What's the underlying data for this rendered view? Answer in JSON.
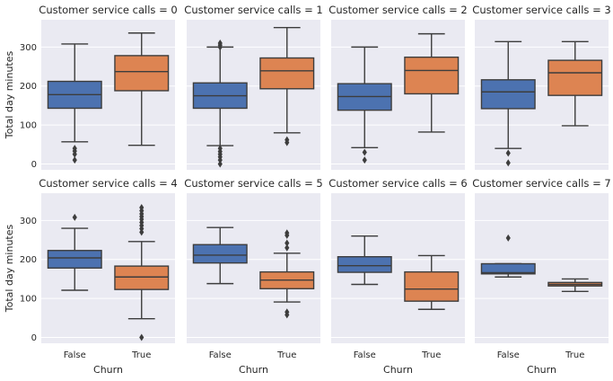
{
  "chart_data": {
    "type": "boxplot",
    "ylabel": "Total day minutes",
    "xlabel": "Churn",
    "categories": [
      "False",
      "True"
    ],
    "yticks": [
      0,
      100,
      200,
      300
    ],
    "ylim": [
      -15,
      370
    ],
    "grid": true,
    "colors": {
      "False": "#4c72b0",
      "True": "#dd8452",
      "background": "#eaeaf2",
      "grid": "#ffffff",
      "line": "#3d3d3d"
    },
    "panels": [
      {
        "title": "Customer service calls = 0",
        "boxes": [
          {
            "category": "False",
            "whislo": 57,
            "q1": 143,
            "med": 178,
            "q3": 212,
            "whishi": 308,
            "outliers": [
              40,
              33,
              25,
              10
            ]
          },
          {
            "category": "True",
            "whislo": 48,
            "q1": 188,
            "med": 237,
            "q3": 278,
            "whishi": 336,
            "outliers": []
          }
        ]
      },
      {
        "title": "Customer service calls = 1",
        "boxes": [
          {
            "category": "False",
            "whislo": 47,
            "q1": 143,
            "med": 175,
            "q3": 208,
            "whishi": 300,
            "outliers": [
              310,
              305,
              300,
              40,
              32,
              25,
              18,
              10,
              0
            ]
          },
          {
            "category": "True",
            "whislo": 80,
            "q1": 193,
            "med": 239,
            "q3": 272,
            "whishi": 350,
            "outliers": [
              62,
              55
            ]
          }
        ]
      },
      {
        "title": "Customer service calls = 2",
        "boxes": [
          {
            "category": "False",
            "whislo": 42,
            "q1": 138,
            "med": 173,
            "q3": 206,
            "whishi": 300,
            "outliers": [
              30,
              10
            ]
          },
          {
            "category": "True",
            "whislo": 82,
            "q1": 180,
            "med": 240,
            "q3": 274,
            "whishi": 334,
            "outliers": []
          }
        ]
      },
      {
        "title": "Customer service calls = 3",
        "boxes": [
          {
            "category": "False",
            "whislo": 40,
            "q1": 142,
            "med": 185,
            "q3": 216,
            "whishi": 314,
            "outliers": [
              28,
              3
            ]
          },
          {
            "category": "True",
            "whislo": 98,
            "q1": 176,
            "med": 234,
            "q3": 266,
            "whishi": 314,
            "outliers": []
          }
        ]
      },
      {
        "title": "Customer service calls = 4",
        "boxes": [
          {
            "category": "False",
            "whislo": 121,
            "q1": 178,
            "med": 204,
            "q3": 223,
            "whishi": 280,
            "outliers": [
              308
            ]
          },
          {
            "category": "True",
            "whislo": 48,
            "q1": 123,
            "med": 155,
            "q3": 183,
            "whishi": 246,
            "outliers": [
              333,
              325,
              317,
              310,
              303,
              295,
              287,
              279,
              270,
              0
            ]
          }
        ]
      },
      {
        "title": "Customer service calls = 5",
        "boxes": [
          {
            "category": "False",
            "whislo": 138,
            "q1": 191,
            "med": 211,
            "q3": 238,
            "whishi": 282,
            "outliers": []
          },
          {
            "category": "True",
            "whislo": 91,
            "q1": 125,
            "med": 147,
            "q3": 168,
            "whishi": 216,
            "outliers": [
              268,
              262,
              242,
              230,
              65,
              58
            ]
          }
        ]
      },
      {
        "title": "Customer service calls = 6",
        "boxes": [
          {
            "category": "False",
            "whislo": 136,
            "q1": 167,
            "med": 184,
            "q3": 207,
            "whishi": 260,
            "outliers": []
          },
          {
            "category": "True",
            "whislo": 72,
            "q1": 93,
            "med": 124,
            "q3": 168,
            "whishi": 210,
            "outliers": []
          }
        ]
      },
      {
        "title": "Customer service calls = 7",
        "boxes": [
          {
            "category": "False",
            "whislo": 155,
            "q1": 163,
            "med": 166,
            "q3": 189,
            "whishi": 189,
            "outliers": [
              255
            ]
          },
          {
            "category": "True",
            "whislo": 118,
            "q1": 132,
            "med": 136,
            "q3": 141,
            "whishi": 150,
            "outliers": []
          }
        ]
      }
    ]
  }
}
